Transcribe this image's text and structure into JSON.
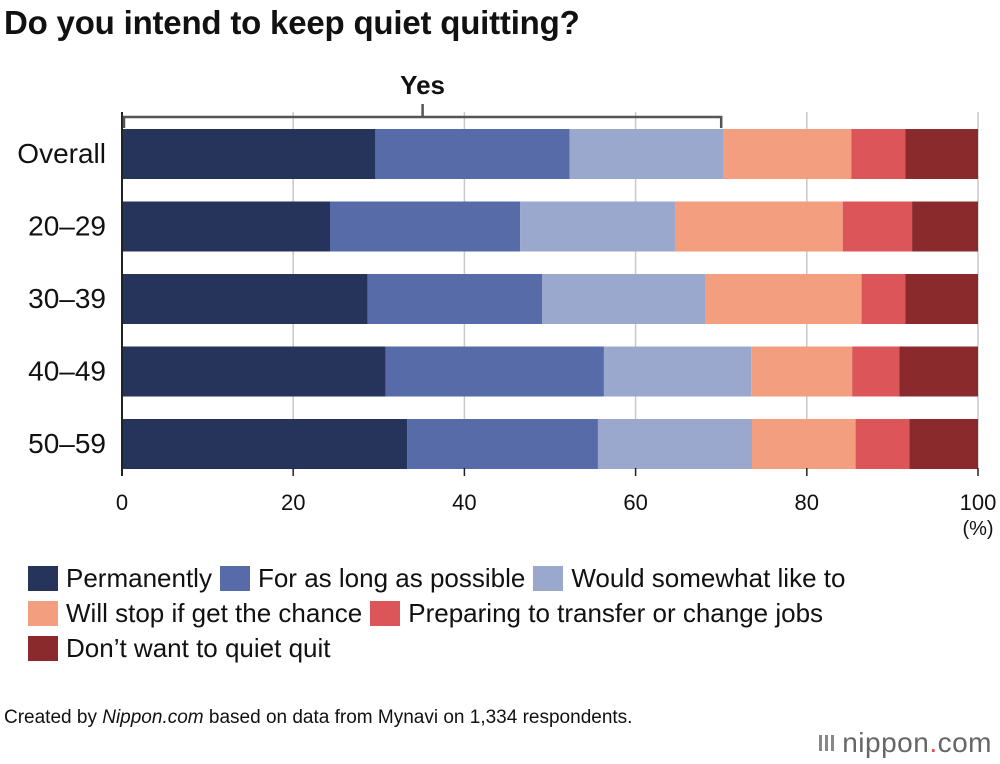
{
  "title": "Do you intend to keep quiet quitting?",
  "chart_data": {
    "type": "bar",
    "orientation": "horizontal-stacked",
    "title": "Do you intend to keep quiet quitting?",
    "categories": [
      "Overall",
      "20–29",
      "30–39",
      "40–49",
      "50–59"
    ],
    "series": [
      {
        "name": "Permanently",
        "color": "#26335a",
        "values": [
          29.6,
          24.3,
          28.7,
          30.8,
          33.3
        ]
      },
      {
        "name": "For as long as possible",
        "color": "#566ba8",
        "values": [
          22.7,
          22.2,
          20.4,
          25.5,
          22.3
        ]
      },
      {
        "name": "Would somewhat like to",
        "color": "#9aa8cd",
        "values": [
          18.0,
          18.1,
          19.1,
          17.2,
          18.0
        ]
      },
      {
        "name": "Will stop if get the chance",
        "color": "#f29e7f",
        "values": [
          14.9,
          19.6,
          18.2,
          11.8,
          12.1
        ]
      },
      {
        "name": "Preparing to transfer or change jobs",
        "color": "#dc5558",
        "values": [
          6.3,
          8.1,
          5.1,
          5.5,
          6.3
        ]
      },
      {
        "name": "Don’t want to quiet quit",
        "color": "#8b2a2c",
        "values": [
          8.5,
          7.7,
          8.5,
          9.2,
          8.0
        ]
      }
    ],
    "xlim": [
      0,
      100
    ],
    "xticks": [
      "0",
      "20",
      "40",
      "60",
      "80",
      "100"
    ],
    "xunit": "(%)",
    "grid": true,
    "annotation": {
      "label": "Yes",
      "from": 0,
      "to": 70
    }
  },
  "legend_rows": [
    [
      0,
      1,
      2
    ],
    [
      3,
      4
    ],
    [
      5
    ]
  ],
  "footnote": {
    "prefix": "Created by ",
    "source": "Nippon.com",
    "suffix": " based on data from Mynavi on 1,334 respondents."
  },
  "logo": {
    "name": "nippon",
    "dot": ".",
    "tld": "com"
  }
}
